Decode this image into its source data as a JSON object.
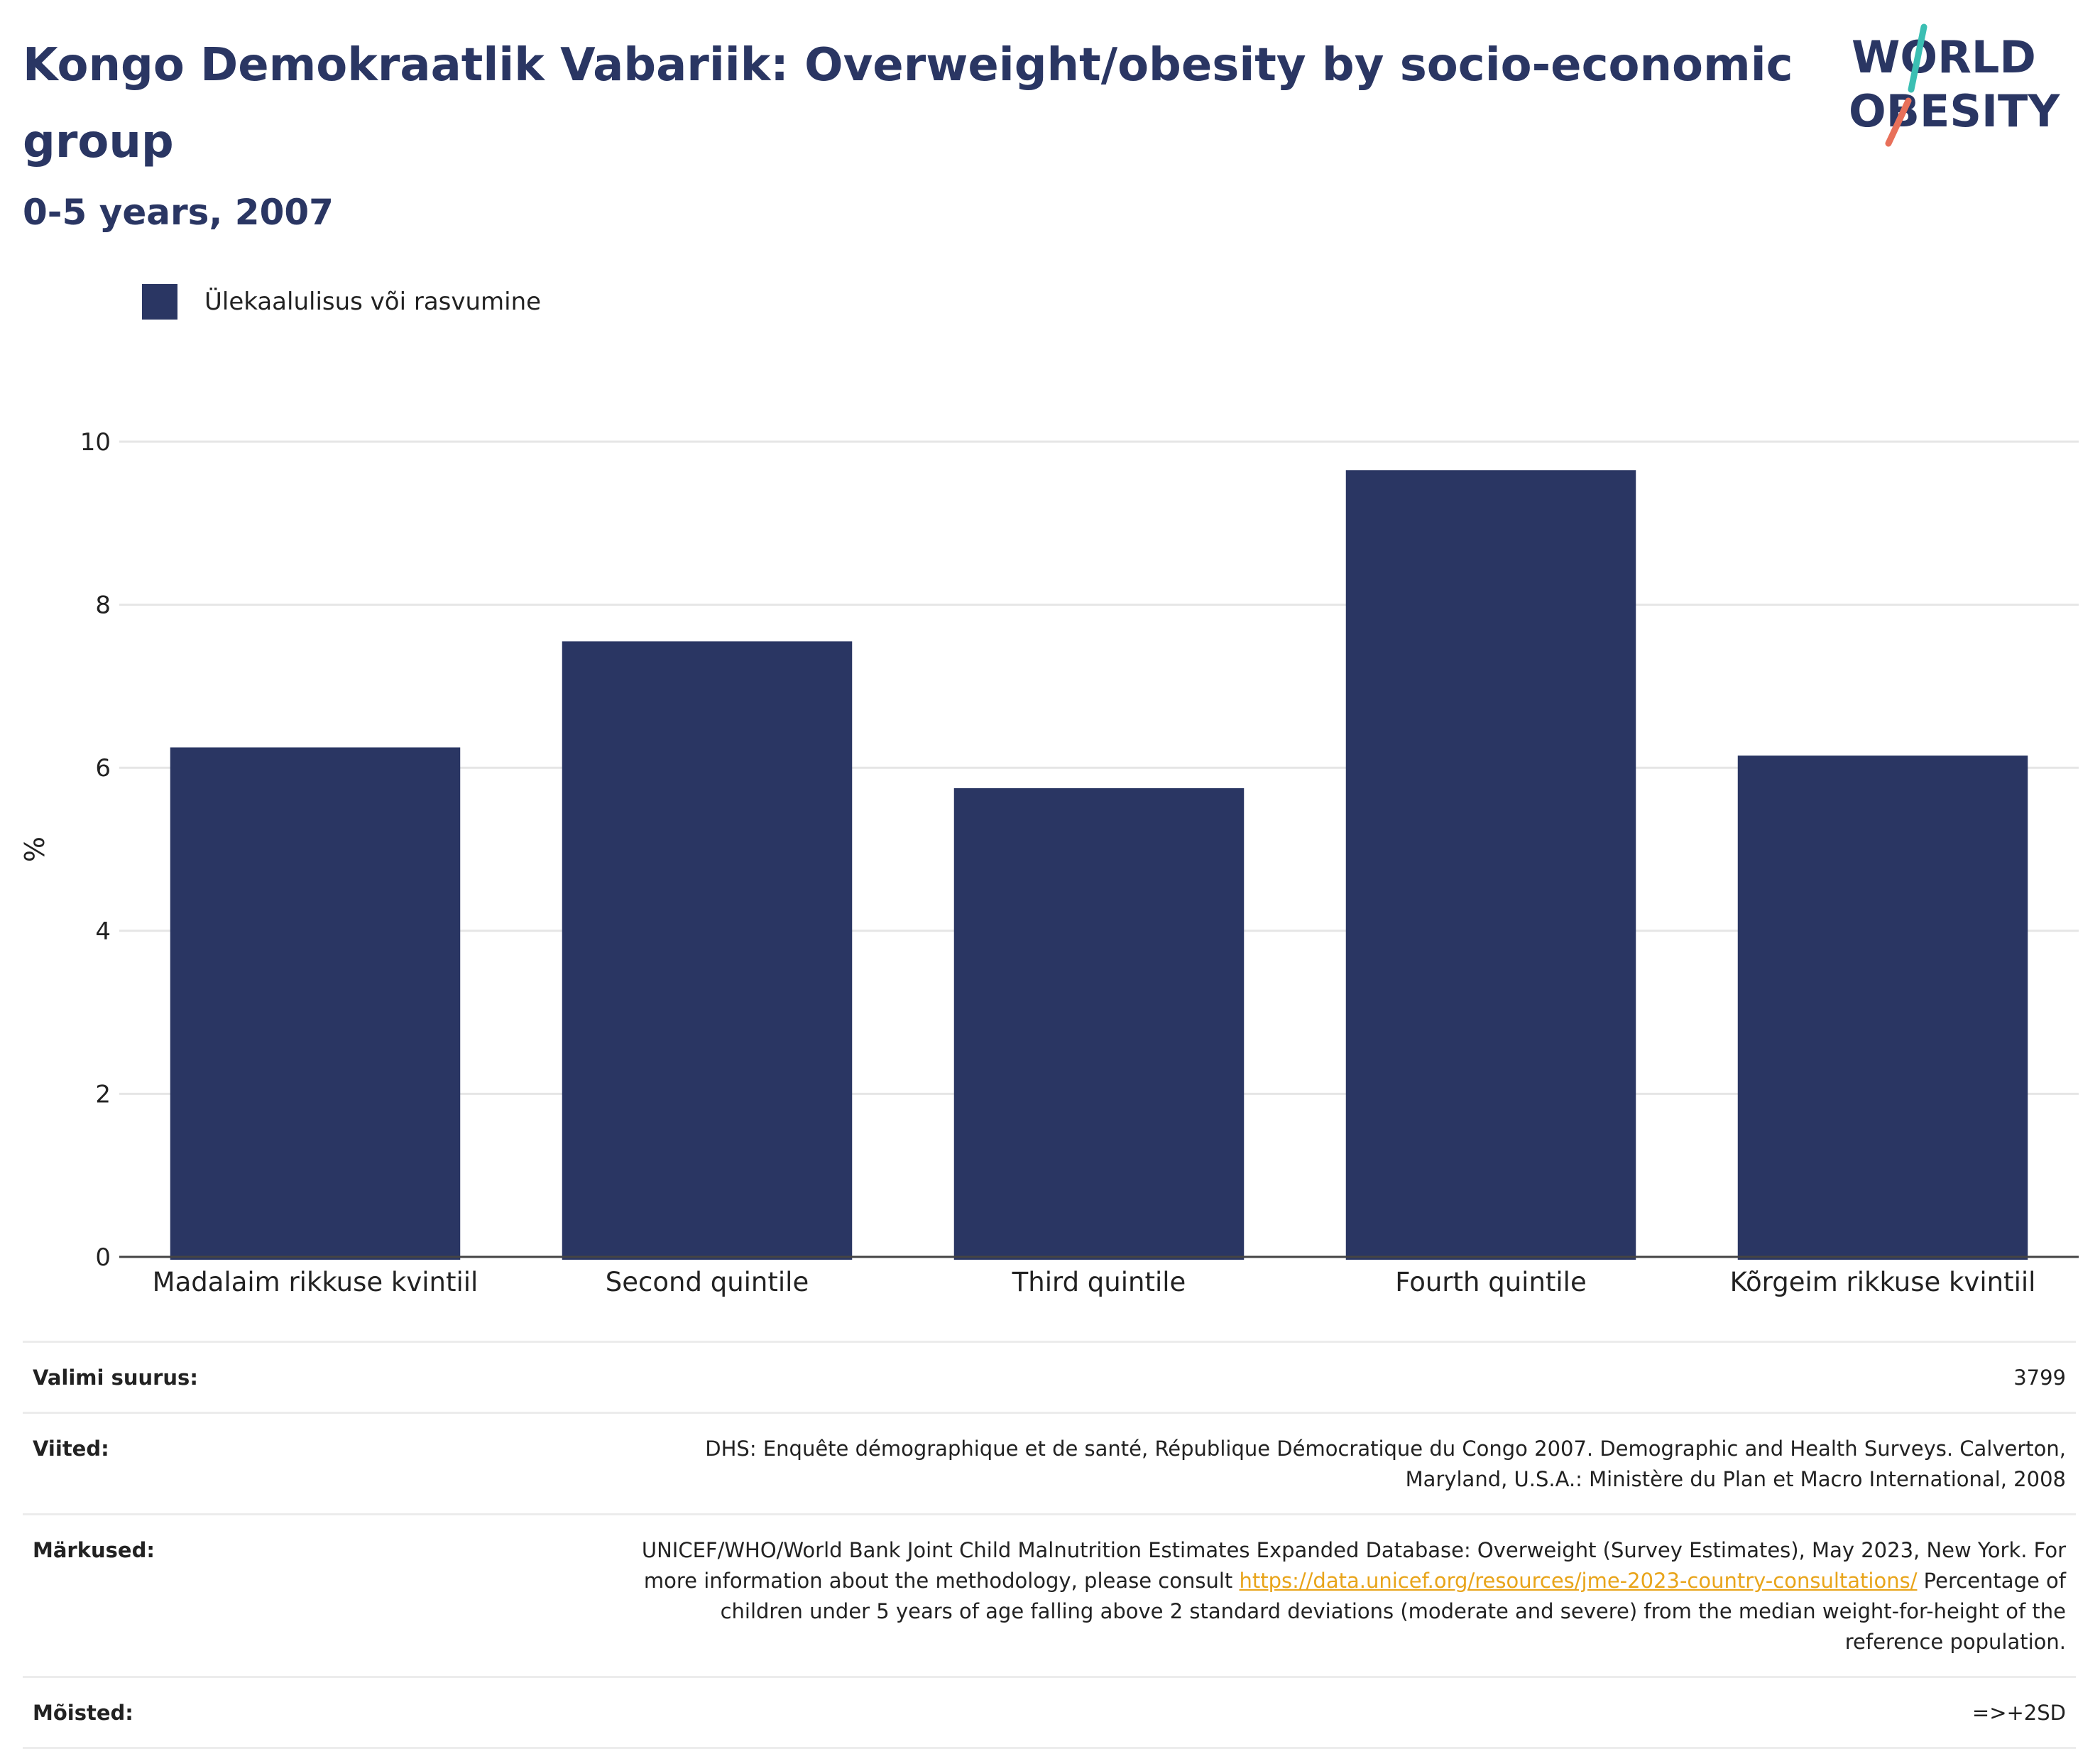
{
  "header": {
    "title": "Kongo Demokraatlik Vabariik: Overweight/obesity by socio-economic group",
    "subtitle": "0-5 years, 2007"
  },
  "logo": {
    "line1": "WORLD",
    "line2": "OBESITY",
    "accent_teal": "#3bbfb3",
    "accent_coral": "#e8705a"
  },
  "legend": {
    "label": "Ülekaalulisus või rasvumine",
    "color": "#2a3663"
  },
  "chart_data": {
    "type": "bar",
    "categories": [
      "Madalaim rikkuse kvintiil",
      "Second quintile",
      "Third quintile",
      "Fourth quintile",
      "Kõrgeim rikkuse kvintiil"
    ],
    "series": [
      {
        "name": "Ülekaalulisus või rasvumine",
        "values": [
          6.25,
          7.55,
          5.75,
          9.65,
          6.15
        ],
        "color": "#2a3663"
      }
    ],
    "ylabel": "%",
    "ylim": [
      0,
      10
    ],
    "yticks": [
      0,
      2,
      4,
      6,
      8,
      10
    ],
    "grid": true,
    "legend_position": "top-left"
  },
  "meta": {
    "sample_size": {
      "label": "Valimi suurus:",
      "value": "3799"
    },
    "references": {
      "label": "Viited:",
      "value": "DHS: Enquête démographique et de santé, République Démocratique du Congo 2007. Demographic and Health Surveys. Calverton, Maryland, U.S.A.: Ministère du Plan et Macro International, 2008"
    },
    "notes": {
      "label": "Märkused:",
      "text_before": "UNICEF/WHO/World Bank Joint Child Malnutrition Estimates Expanded Database: Overweight (Survey Estimates), May 2023, New York. For more information about the methodology, please consult ",
      "link": "https://data.unicef.org/resources/jme-2023-country-consultations/",
      "text_after": " Percentage of children under 5 years of age falling above 2 standard deviations (moderate and severe) from the median weight-for-height of the reference population."
    },
    "definitions": {
      "label": "Mõisted:",
      "value": "=>+2SD"
    }
  }
}
